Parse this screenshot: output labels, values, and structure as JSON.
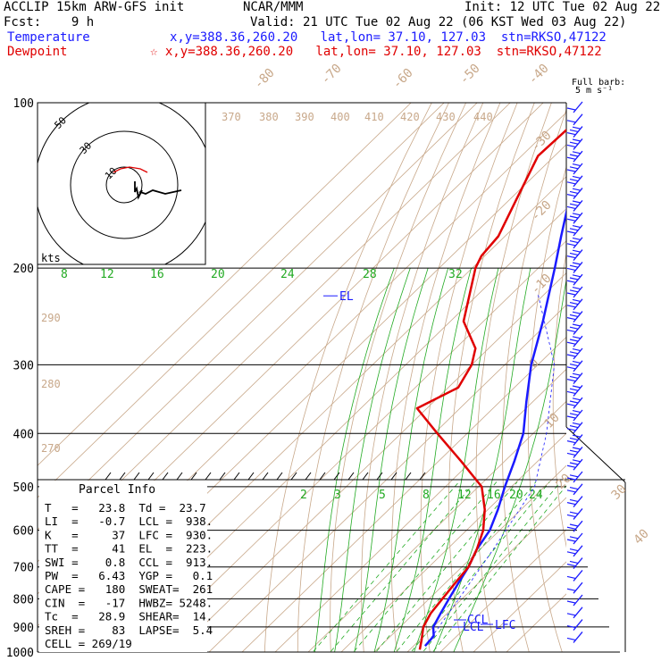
{
  "header": {
    "model": "ACCLIP 15km ARW-GFS init",
    "org": "NCAR/MMM",
    "init": "Init: 12 UTC Tue 02 Aug 22",
    "fcst": "Fcst:    9 h",
    "valid": "Valid: 21 UTC Tue 02 Aug 22 (06 KST Wed 03 Aug 22)",
    "temp_label": "Temperature",
    "temp_info": "x,y=388.36,260.20   lat,lon= 37.10, 127.03  stn=RKSO,47122",
    "dew_label": "Dewpoint",
    "dew_info": "☆ x,y=388.36,260.20   lat,lon= 37.10, 127.03  stn=RKSO,47122"
  },
  "chart_data": {
    "type": "line",
    "title": "",
    "y_axis": "pressure (hPa), log scale",
    "ylim": [
      1000,
      100
    ],
    "pressure_ticks": [
      100,
      200,
      300,
      400,
      500,
      600,
      700,
      800,
      900,
      1000
    ],
    "isotherm_labels": [
      "-80",
      "-70",
      "-60",
      "-50",
      "-40",
      "-30",
      "-20",
      "-10",
      "0",
      "10",
      "20",
      "30",
      "40"
    ],
    "theta_labels": [
      "370",
      "380",
      "390",
      "400",
      "410",
      "420",
      "430",
      "440",
      "290",
      "280",
      "270"
    ],
    "mixing_ratio_top": [
      "8",
      "12",
      "16",
      "20",
      "24",
      "28",
      "32"
    ],
    "mixing_ratio_bottom": [
      "2",
      "3",
      "5",
      "8",
      "12",
      "16",
      "20",
      "24"
    ],
    "series": [
      {
        "name": "Temperature",
        "color": "#1a1aff",
        "points": [
          [
            100,
            -77.5
          ],
          [
            125,
            -76
          ],
          [
            150,
            -72
          ],
          [
            175,
            -63
          ],
          [
            200,
            -55
          ],
          [
            250,
            -42
          ],
          [
            300,
            -32
          ],
          [
            350,
            -22
          ],
          [
            400,
            -13
          ],
          [
            450,
            -7
          ],
          [
            500,
            -2
          ],
          [
            550,
            3
          ],
          [
            600,
            7
          ],
          [
            650,
            9
          ],
          [
            700,
            12
          ],
          [
            750,
            14
          ],
          [
            800,
            16
          ],
          [
            850,
            18
          ],
          [
            900,
            20
          ],
          [
            935,
            23
          ],
          [
            975,
            23.5
          ]
        ]
      },
      {
        "name": "Dewpoint",
        "color": "#e00000",
        "points": [
          [
            100,
            -94
          ],
          [
            125,
            -95
          ],
          [
            150,
            -88
          ],
          [
            175,
            -82
          ],
          [
            190,
            -81
          ],
          [
            200,
            -79
          ],
          [
            250,
            -66
          ],
          [
            280,
            -54
          ],
          [
            300,
            -50
          ],
          [
            330,
            -47
          ],
          [
            360,
            -53
          ],
          [
            400,
            -39
          ],
          [
            450,
            -23
          ],
          [
            500,
            -9
          ],
          [
            550,
            -1
          ],
          [
            600,
            5
          ],
          [
            650,
            9
          ],
          [
            700,
            12
          ],
          [
            750,
            13
          ],
          [
            800,
            14
          ],
          [
            850,
            15
          ],
          [
            900,
            17
          ],
          [
            950,
            20.5
          ],
          [
            990,
            23
          ]
        ]
      }
    ],
    "annotations": [
      "EL",
      "CCL",
      "LCL",
      "LFC"
    ],
    "barb_legend": [
      "Full barb:",
      "5 m s⁻¹"
    ],
    "hodograph": {
      "rings": [
        "10",
        "30",
        "50"
      ],
      "units": "kts",
      "trace_black": [
        [
          6,
          2
        ],
        [
          6,
          -4
        ],
        [
          7,
          -2
        ],
        [
          8,
          -7
        ],
        [
          10,
          -3
        ],
        [
          9,
          -4
        ],
        [
          12,
          -5
        ],
        [
          16,
          -3
        ],
        [
          23,
          -5
        ],
        [
          32,
          -3
        ]
      ],
      "trace_red": [
        [
          -6,
          7
        ],
        [
          -2,
          9
        ],
        [
          3,
          10
        ],
        [
          9,
          9
        ],
        [
          13,
          7
        ]
      ]
    }
  },
  "parcel_info": {
    "title": "Parcel Info",
    "rows": [
      "T   =   23.8  Td =  23.7",
      "LI  =   -0.7  LCL =  938.",
      "K   =     37  LFC =  930.",
      "TT  =     41  EL  =  223.",
      "SWI =    0.8  CCL =  913.",
      "PW  =   6.43  YGP =   0.1",
      "CAPE =   180  SWEAT=  261",
      "CIN  =   -17  HWBZ= 5248.",
      "Tc  =   28.9  SHEAR=  14.",
      "SREH =    83  LAPSE=  5.4",
      "CELL = 269/19"
    ]
  },
  "colors": {
    "isotherm": "#c8a88a",
    "dry_adiabat": "#c8a88a",
    "moist_adiabat": "#22aa22",
    "mixing_ratio": "#22aa22",
    "isobar": "#000000"
  }
}
